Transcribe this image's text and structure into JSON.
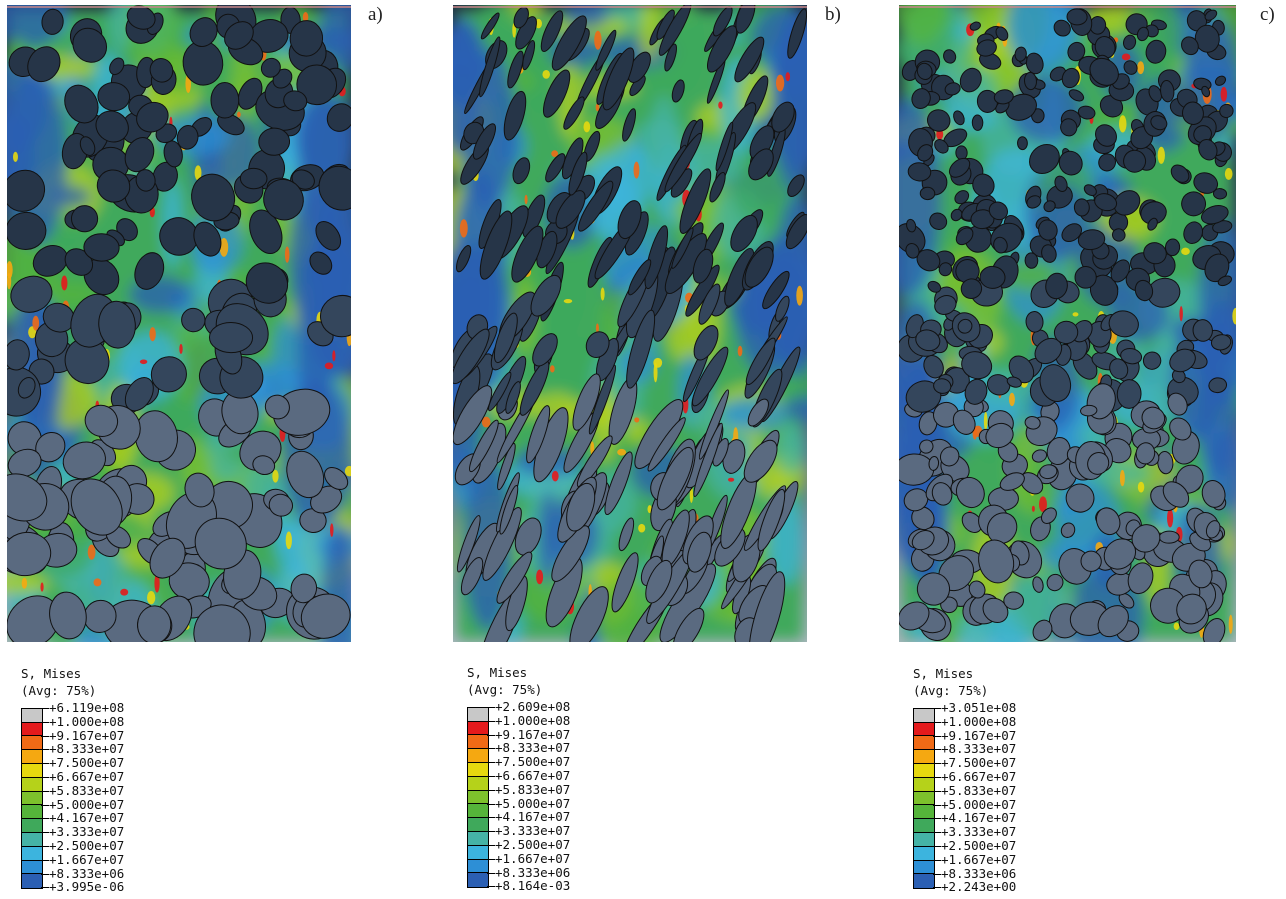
{
  "panels": [
    {
      "label": "a)",
      "legend": {
        "title": "S, Mises",
        "subtitle": "(Avg: 75%)",
        "values": [
          "+6.119e+08",
          "+1.000e+08",
          "+9.167e+07",
          "+8.333e+07",
          "+7.500e+07",
          "+6.667e+07",
          "+5.833e+07",
          "+5.000e+07",
          "+4.167e+07",
          "+3.333e+07",
          "+2.500e+07",
          "+1.667e+07",
          "+8.333e+06",
          "+3.995e-06"
        ]
      }
    },
    {
      "label": "b)",
      "legend": {
        "title": "S, Mises",
        "subtitle": "(Avg: 75%)",
        "values": [
          "+2.609e+08",
          "+1.000e+08",
          "+9.167e+07",
          "+8.333e+07",
          "+7.500e+07",
          "+6.667e+07",
          "+5.833e+07",
          "+5.000e+07",
          "+4.167e+07",
          "+3.333e+07",
          "+2.500e+07",
          "+1.667e+07",
          "+8.333e+06",
          "+8.164e-03"
        ]
      }
    },
    {
      "label": "c)",
      "legend": {
        "title": "S, Mises",
        "subtitle": "(Avg: 75%)",
        "values": [
          "+3.051e+08",
          "+1.000e+08",
          "+9.167e+07",
          "+8.333e+07",
          "+7.500e+07",
          "+6.667e+07",
          "+5.833e+07",
          "+5.000e+07",
          "+4.167e+07",
          "+3.333e+07",
          "+2.500e+07",
          "+1.667e+07",
          "+8.333e+06",
          "+2.243e+00"
        ]
      }
    }
  ],
  "contour_colors": [
    "#c8c8c8",
    "#e41a1c",
    "#f06a16",
    "#f5a811",
    "#e6d80f",
    "#b5d21a",
    "#7dc12c",
    "#55b43a",
    "#3fa95b",
    "#45b3a6",
    "#3cb4de",
    "#2d8fd6",
    "#2b5fb3",
    "#233c8c"
  ],
  "background_colors": {
    "particle": "#263548",
    "edge": "#1c2736"
  }
}
